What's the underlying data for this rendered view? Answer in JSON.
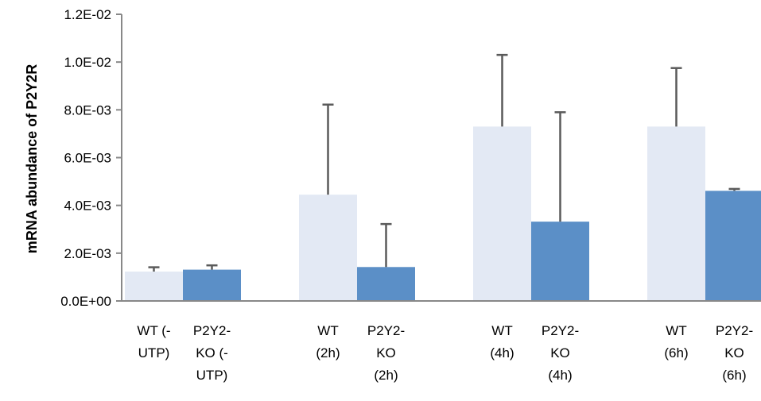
{
  "chart_data": {
    "type": "bar",
    "title": "",
    "xlabel": "",
    "ylabel": "mRNA abundance of P2Y2R",
    "ylim": [
      0,
      0.012
    ],
    "yticks": [
      "0.0E+00",
      "2.0E-03",
      "4.0E-03",
      "6.0E-03",
      "8.0E-03",
      "1.0E-02",
      "1.2E-02"
    ],
    "ytick_values": [
      0,
      0.002,
      0.004,
      0.006,
      0.008,
      0.01,
      0.012
    ],
    "grid": false,
    "legend": "none",
    "groups": [
      {
        "bars": [
          {
            "label_lines": [
              "WT (-",
              "UTP)"
            ],
            "value": 0.00123,
            "error": 0.00018,
            "color": "#e3e9f4"
          },
          {
            "label_lines": [
              "P2Y2-",
              "KO (-",
              "UTP)"
            ],
            "value": 0.00131,
            "error": 0.00018,
            "color": "#5b8fc7"
          }
        ]
      },
      {
        "bars": [
          {
            "label_lines": [
              "WT",
              "(2h)"
            ],
            "value": 0.00445,
            "error": 0.00377,
            "color": "#e3e9f4"
          },
          {
            "label_lines": [
              "P2Y2-",
              "KO",
              "(2h)"
            ],
            "value": 0.00142,
            "error": 0.0018,
            "color": "#5b8fc7"
          }
        ]
      },
      {
        "bars": [
          {
            "label_lines": [
              "WT",
              "(4h)"
            ],
            "value": 0.0073,
            "error": 0.003,
            "color": "#e3e9f4"
          },
          {
            "label_lines": [
              "P2Y2-",
              "KO",
              "(4h)"
            ],
            "value": 0.00332,
            "error": 0.00458,
            "color": "#5b8fc7"
          }
        ]
      },
      {
        "bars": [
          {
            "label_lines": [
              "WT",
              "(6h)"
            ],
            "value": 0.0073,
            "error": 0.00245,
            "color": "#e3e9f4"
          },
          {
            "label_lines": [
              "P2Y2-",
              "KO",
              "(6h)"
            ],
            "value": 0.00461,
            "error": 8e-05,
            "color": "#5b8fc7"
          }
        ]
      }
    ],
    "axis_color": "#888888",
    "errorbar_color": "#5a5a5a"
  }
}
